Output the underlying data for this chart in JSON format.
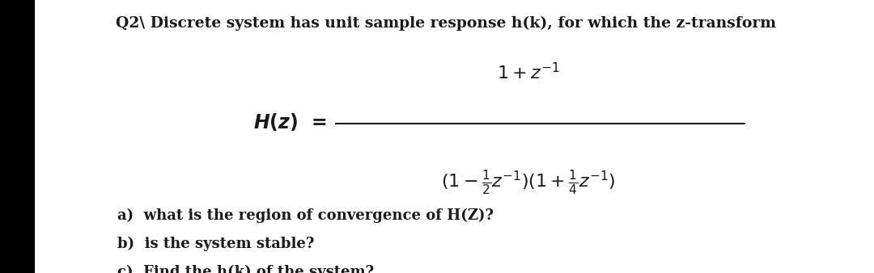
{
  "bg_color": "#ffffff",
  "left_bar_color": "#000000",
  "text_color": "#1a1a1a",
  "title_line": "Q2\\ Discrete system has unit sample response h(k), for which the z-transform",
  "question_a": "a)  what is the region of convergence of H(Z)?",
  "question_b": "b)  is the system stable?",
  "question_c": "c)  Find the h(k) of the system?",
  "title_fontsize": 13.5,
  "eq_fontsize": 16,
  "question_fontsize": 13,
  "left_bar_width": 0.04
}
